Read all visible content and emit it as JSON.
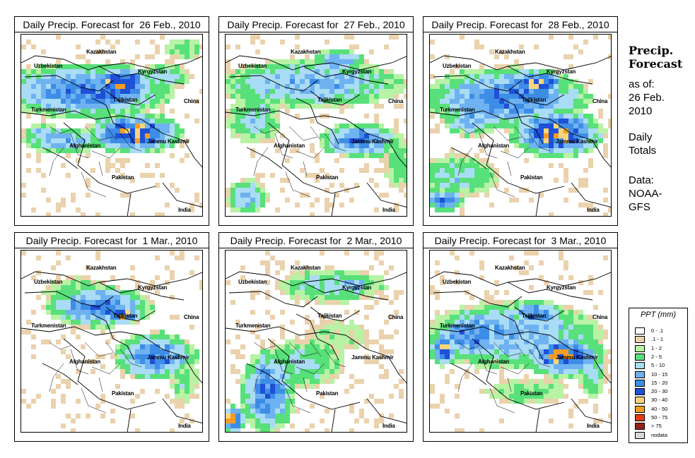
{
  "panels": [
    {
      "title": "Daily Precip. Forecast for  26 Feb., 2010",
      "pattern": 0
    },
    {
      "title": "Daily Precip. Forecast for  27 Feb., 2010",
      "pattern": 1
    },
    {
      "title": "Daily Precip. Forecast for  28 Feb., 2010",
      "pattern": 2
    },
    {
      "title": "Daily Precip. Forecast for  1 Mar., 2010",
      "pattern": 3
    },
    {
      "title": "Daily Precip. Forecast for  2 Mar., 2010",
      "pattern": 4
    },
    {
      "title": "Daily Precip. Forecast for  3 Mar., 2010",
      "pattern": 5
    }
  ],
  "map_labels": {
    "kazakhstan": "Kazakhstan",
    "uzbekistan": "Uzbekistan",
    "kyrgyzstan": "Kyrgyzstan",
    "tajikistan": "Tajikistan",
    "china": "China",
    "turkmenistan": "Turkmenistan",
    "afghanistan": "Afghanistan",
    "jammu_kashmir": "Jammu Kashmir",
    "pakistan": "Pakistan",
    "india": "India"
  },
  "side": {
    "title_line1": "Precip.",
    "title_line2": "Forecast",
    "asof_1": "as of:",
    "asof_2": "26 Feb.",
    "asof_3": "2010",
    "daily_1": "Daily",
    "daily_2": "Totals",
    "data_1": "Data:",
    "data_2": "NOAA-",
    "data_3": "GFS"
  },
  "legend": {
    "title": "PPT (mm)",
    "items": [
      {
        "label": "0 - .1",
        "color": "#ffffff"
      },
      {
        "label": ".1 - 1",
        "color": "#ead2ad"
      },
      {
        "label": "1 - 2",
        "color": "#b8f2a4"
      },
      {
        "label": "2 - 5",
        "color": "#58e07a"
      },
      {
        "label": "5 - 10",
        "color": "#a9dcf5"
      },
      {
        "label": "10 - 15",
        "color": "#6fb2f1"
      },
      {
        "label": "15 - 20",
        "color": "#3d8de7"
      },
      {
        "label": "20 - 30",
        "color": "#1e50d8"
      },
      {
        "label": "30 - 40",
        "color": "#fbd57c"
      },
      {
        "label": "40 - 50",
        "color": "#f59d23"
      },
      {
        "label": "50 - 75",
        "color": "#e43a15"
      },
      {
        "label": "> 75",
        "color": "#962219"
      },
      {
        "label": "nodata",
        "color": "#d8d8d8"
      }
    ]
  }
}
